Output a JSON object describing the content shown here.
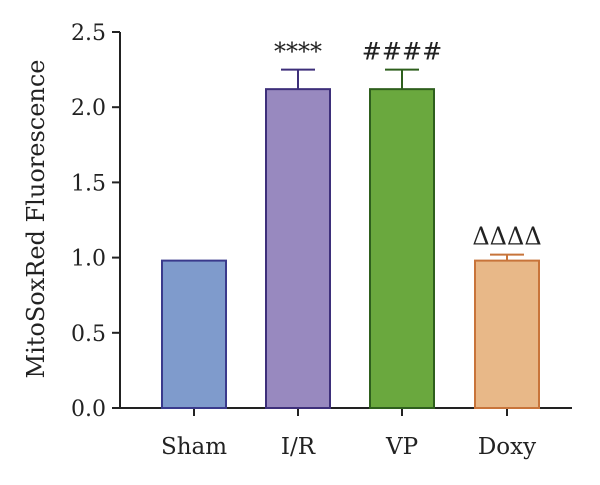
{
  "chart_data": {
    "type": "bar",
    "title": "",
    "xlabel": "",
    "ylabel": "MitoSoxRed Fluorescence",
    "ylim": [
      0,
      2.5
    ],
    "yticks": [
      "0.0",
      "0.5",
      "1.0",
      "1.5",
      "2.0",
      "2.5"
    ],
    "categories": [
      "Sham",
      "I/R",
      "VP",
      "Doxy"
    ],
    "values": [
      0.98,
      2.12,
      2.12,
      0.98
    ],
    "errors": [
      0,
      0.13,
      0.13,
      0.04
    ],
    "significance": [
      "",
      "****",
      "####",
      "ΔΔΔΔ"
    ],
    "colors": {
      "fill": [
        "#7f9bcc",
        "#9889bf",
        "#6aa83e",
        "#e8b888"
      ],
      "stroke": [
        "#3a3a8c",
        "#3d2f7a",
        "#2e5f1d",
        "#c8743a"
      ]
    },
    "grid": false,
    "legend": "none"
  }
}
